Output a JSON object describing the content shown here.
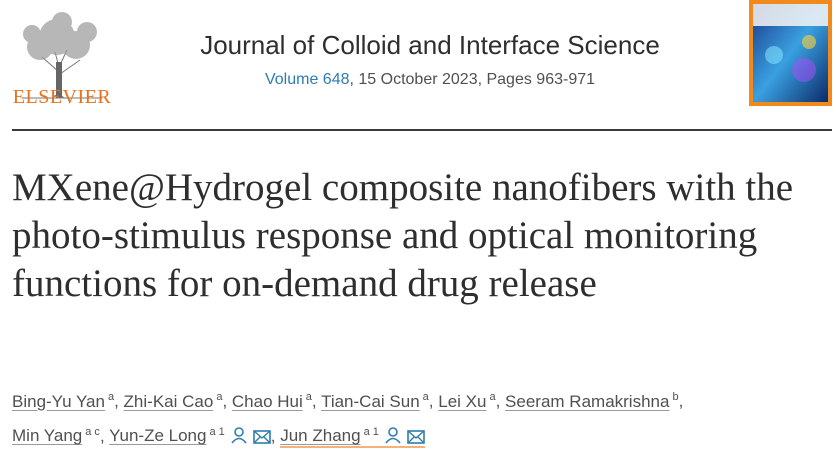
{
  "header": {
    "publisher": "ELSEVIER",
    "journal": "Journal of Colloid and Interface Science",
    "volume": "Volume 648",
    "issue_info": ", 15 October 2023, Pages 963-971"
  },
  "title": "MXene@Hydrogel composite nanofibers with the photo-stimulus response and optical monitoring functions for on-demand drug release",
  "author_separator": ",",
  "authors": [
    {
      "name": "Bing-Yu Yan",
      "sup": "a"
    },
    {
      "name": "Zhi-Kai Cao",
      "sup": "a"
    },
    {
      "name": "Chao Hui",
      "sup": "a"
    },
    {
      "name": "Tian-Cai Sun",
      "sup": "a"
    },
    {
      "name": "Lei Xu",
      "sup": "a"
    },
    {
      "name": "Seeram Ramakrishna",
      "sup": "b"
    },
    {
      "name": "Min Yang",
      "sup": "a c"
    },
    {
      "name": "Yun-Ze Long",
      "sup": "a 1",
      "corresponding": true
    },
    {
      "name": "Jun Zhang",
      "sup": "a 1",
      "corresponding": true,
      "highlight": true
    }
  ]
}
